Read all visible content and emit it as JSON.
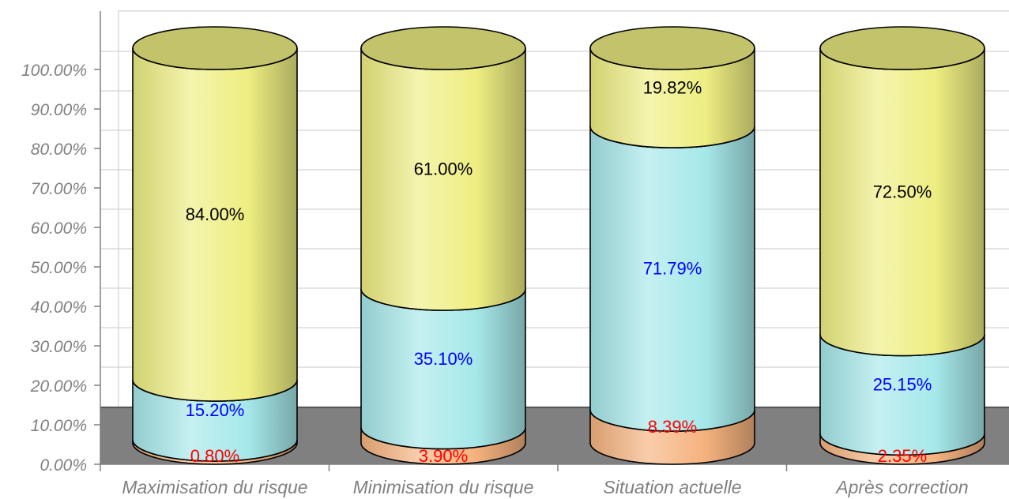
{
  "chart_data": {
    "type": "bar",
    "subtype": "stacked-100-cylinder",
    "categories": [
      "Maximisation du risque",
      "Minimisation du risque",
      "Situation actuelle",
      "Après correction"
    ],
    "series": [
      {
        "values": [
          0.8,
          3.9,
          8.39,
          2.35
        ],
        "labels": [
          "0.80%",
          "3.90%",
          "8.39%",
          "2.35%"
        ],
        "color": "#f5b27e",
        "label_color": "#ff0000"
      },
      {
        "values": [
          15.2,
          35.1,
          71.79,
          25.15
        ],
        "labels": [
          "15.20%",
          "35.10%",
          "71.79%",
          "25.15%"
        ],
        "color": "#a6e8ea",
        "label_color": "#0000ff"
      },
      {
        "values": [
          84.0,
          61.0,
          19.82,
          72.5
        ],
        "labels": [
          "84.00%",
          "61.00%",
          "19.82%",
          "72.50%"
        ],
        "color": "#eeee82",
        "label_color": "#000000"
      }
    ],
    "y_ticks": [
      "0.00%",
      "10.00%",
      "20.00%",
      "30.00%",
      "40.00%",
      "50.00%",
      "60.00%",
      "70.00%",
      "80.00%",
      "90.00%",
      "100.00%"
    ],
    "ylim": [
      0,
      100
    ],
    "grid": true,
    "floor_color": "#808080",
    "title": "",
    "xlabel": "",
    "ylabel": ""
  }
}
